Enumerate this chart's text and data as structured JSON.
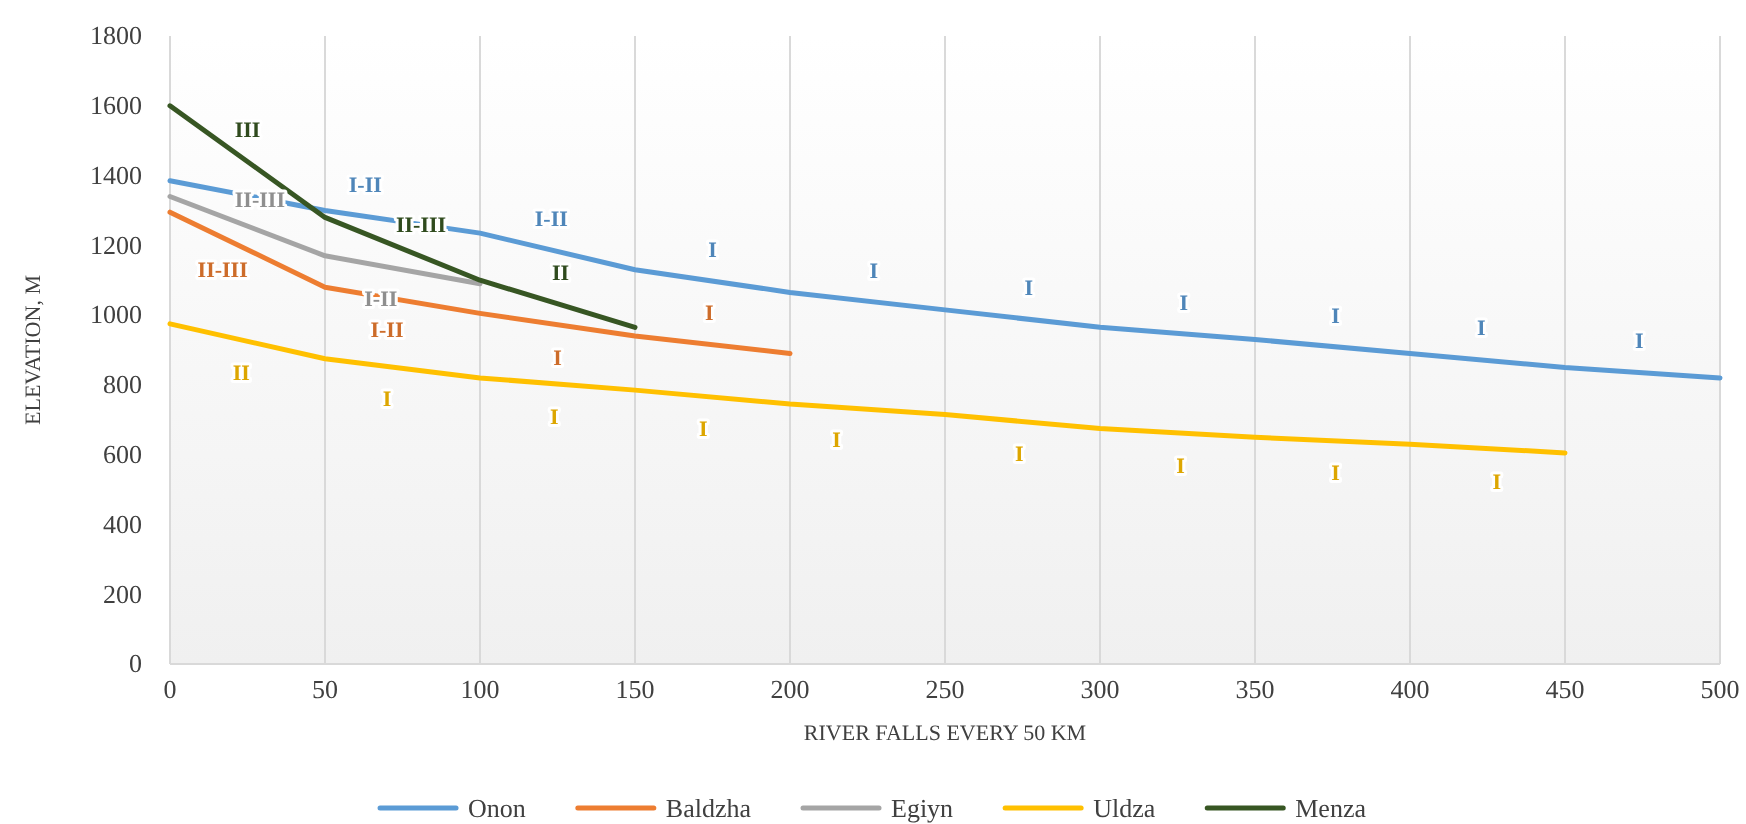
{
  "chart_data": {
    "type": "line",
    "xlabel": "RIVER FALLS EVERY 50 KM",
    "ylabel": "ELEVATION, M",
    "x": [
      0,
      50,
      100,
      150,
      200,
      250,
      300,
      350,
      400,
      450,
      500
    ],
    "series": [
      {
        "name": "Onon",
        "color": "#5b9bd5",
        "values": [
          1385,
          1300,
          1235,
          1130,
          1065,
          1015,
          965,
          930,
          890,
          850,
          820
        ]
      },
      {
        "name": "Baldzha",
        "color": "#ed7d31",
        "values": [
          1295,
          1080,
          1005,
          940,
          890,
          null,
          null,
          null,
          null,
          null,
          null
        ]
      },
      {
        "name": "Egiyn",
        "color": "#a5a5a5",
        "values": [
          1340,
          1170,
          1090,
          null,
          null,
          null,
          null,
          null,
          null,
          null,
          null
        ]
      },
      {
        "name": "Uldza",
        "color": "#ffc000",
        "values": [
          975,
          875,
          820,
          785,
          745,
          715,
          675,
          650,
          630,
          605,
          null
        ]
      },
      {
        "name": "Menza",
        "color": "#375623",
        "values": [
          1600,
          1280,
          1100,
          965,
          null,
          null,
          null,
          null,
          null,
          null,
          null
        ]
      }
    ],
    "xlim": [
      0,
      500
    ],
    "xticks": [
      0,
      50,
      100,
      150,
      200,
      250,
      300,
      350,
      400,
      450,
      500
    ],
    "ylim": [
      0,
      1800
    ],
    "yticks": [
      0,
      200,
      400,
      600,
      800,
      1000,
      1200,
      1400,
      1600,
      1800
    ],
    "grid": "x",
    "legend": "bottom",
    "marker": "none",
    "line_style": "solid",
    "annotations": [
      {
        "text": "I-II",
        "x": 63,
        "y": 1283
      },
      {
        "text": "I-II",
        "x": 123,
        "y": 1187
      },
      {
        "text": "I",
        "x": 175,
        "y": 1098
      },
      {
        "text": "I",
        "x": 227,
        "y": 1038
      },
      {
        "text": "I",
        "x": 277,
        "y": 988
      },
      {
        "text": "I",
        "x": 327,
        "y": 946
      },
      {
        "text": "I",
        "x": 376,
        "y": 909
      },
      {
        "text": "I",
        "x": 423,
        "y": 872
      },
      {
        "text": "I",
        "x": 474,
        "y": 836
      },
      {
        "text": "III",
        "x": 25,
        "y": 1440
      },
      {
        "text": "II-III",
        "x": 81,
        "y": 1168
      },
      {
        "text": "II",
        "x": 126,
        "y": 1030
      },
      {
        "text": "II-III",
        "x": 29,
        "y": 1241
      },
      {
        "text": "I-II",
        "x": 68,
        "y": 1141
      },
      {
        "text": "II-III",
        "x": 17,
        "y": 1222
      },
      {
        "text": "I-II",
        "x": 70,
        "y": 1050
      },
      {
        "text": "I",
        "x": 125,
        "y": 972
      },
      {
        "text": "I",
        "x": 174,
        "y": 916
      },
      {
        "text": "II",
        "x": 23,
        "y": 929
      },
      {
        "text": "I",
        "x": 70,
        "y": 853
      },
      {
        "text": "I",
        "x": 124,
        "y": 803
      },
      {
        "text": "I",
        "x": 172,
        "y": 767
      },
      {
        "text": "I",
        "x": 215,
        "y": 736
      },
      {
        "text": "I",
        "x": 274,
        "y": 696
      },
      {
        "text": "I",
        "x": 326,
        "y": 662
      },
      {
        "text": "I",
        "x": 376,
        "y": 640
      },
      {
        "text": "I",
        "x": 428,
        "y": 616
      }
    ]
  }
}
